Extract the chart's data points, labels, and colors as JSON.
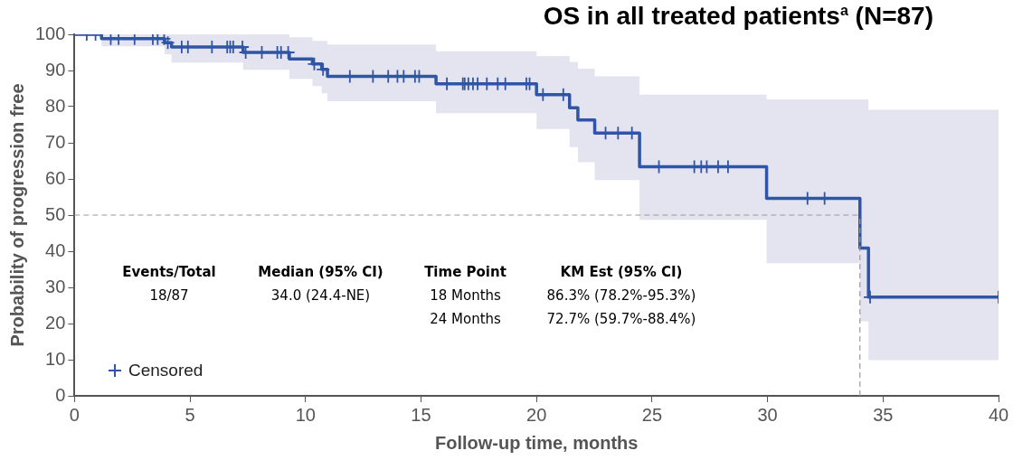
{
  "chart_data": {
    "type": "step",
    "title": "OS in all treated patients$^{a}$ (N=87)",
    "xlabel": "Follow-up time, months",
    "ylabel": "Probability of progression free",
    "xlim": [
      0,
      40
    ],
    "xticks": [
      0,
      5,
      10,
      15,
      20,
      25,
      30,
      35,
      40
    ],
    "ylim": [
      0,
      100
    ],
    "yticks": [
      0,
      10,
      20,
      30,
      40,
      50,
      60,
      70,
      80,
      90,
      100
    ],
    "grid": false,
    "legend": "bottom left",
    "series": [
      {
        "color": "#2f55a4",
        "x": [
          0,
          1.17,
          3.9,
          4.2,
          7.3,
          9.3,
          10.3,
          10.7,
          10.95,
          15.65,
          20.0,
          21.43,
          21.79,
          22.52,
          24.46,
          29.96,
          34.0,
          34.37,
          40
        ],
        "values": [
          100,
          98.8,
          97.7,
          96.5,
          95.0,
          93.2,
          91.8,
          90.3,
          88.4,
          86.3,
          83.3,
          79.7,
          76.3,
          72.7,
          63.4,
          54.6,
          40.9,
          27.3,
          27.3
        ],
        "lower": [
          100,
          96.7,
          94.5,
          92.2,
          90.2,
          87.7,
          85.7,
          83.7,
          81.5,
          78.2,
          73.8,
          68.8,
          64.6,
          59.7,
          48.7,
          36.7,
          20.6,
          9.9,
          9.9
        ],
        "upper": [
          100,
          100,
          100,
          100,
          100,
          99.2,
          98.2,
          98.2,
          97.2,
          95.3,
          94.0,
          92.4,
          90.5,
          88.4,
          83.3,
          82.0,
          82.0,
          79.1,
          79.1
        ]
      },
      {
        "type": "scatter",
        "name": "Censored",
        "color": "#2f55a4",
        "marker": "cross",
        "x": [
          0.53,
          0.91,
          1.57,
          1.91,
          2.6,
          3.39,
          3.6,
          3.88,
          4.04,
          4.64,
          4.91,
          5.95,
          6.61,
          6.74,
          6.87,
          7.27,
          7.41,
          8.11,
          8.78,
          8.94,
          9.25,
          10.38,
          10.76,
          11.92,
          12.92,
          13.58,
          13.98,
          14.25,
          14.74,
          14.92,
          16.12,
          16.81,
          16.89,
          17.05,
          17.25,
          17.45,
          17.85,
          18.32,
          18.65,
          19.56,
          19.7,
          20.28,
          21.16,
          22.99,
          23.53,
          24.13,
          25.3,
          26.83,
          27.13,
          27.37,
          27.86,
          28.29,
          31.73,
          32.47,
          34.44,
          40
        ],
        "values": [
          100,
          100,
          98.8,
          98.8,
          98.8,
          98.8,
          98.8,
          98.8,
          97.7,
          96.5,
          96.5,
          96.5,
          96.5,
          96.5,
          96.5,
          96.5,
          95.0,
          95.0,
          95.0,
          95.0,
          95.0,
          91.8,
          90.3,
          88.4,
          88.4,
          88.4,
          88.4,
          88.4,
          88.4,
          88.4,
          86.3,
          86.3,
          86.3,
          86.3,
          86.3,
          86.3,
          86.3,
          86.3,
          86.3,
          86.3,
          86.3,
          83.3,
          83.3,
          72.7,
          72.7,
          72.7,
          63.4,
          63.4,
          63.4,
          63.4,
          63.4,
          63.4,
          54.6,
          54.6,
          27.3,
          27.3
        ]
      }
    ],
    "ref_lines": [
      {
        "axis": "y",
        "value": 50,
        "color": "#9a9a9a",
        "line_style": "dashed"
      },
      {
        "axis": "x",
        "value": 34.0,
        "color": "#9a9a9a",
        "line_style": "dashed"
      }
    ],
    "annotations": [
      "Events/Total",
      "Median (95% CI)",
      "Time Point",
      "KM Est (95% CI)",
      "18/87",
      "34.0 (24.4-NE)",
      "18 Months",
      "86.3% (78.2%-95.3%)",
      "24 Months",
      "72.7% (59.7%-88.4%)"
    ]
  }
}
